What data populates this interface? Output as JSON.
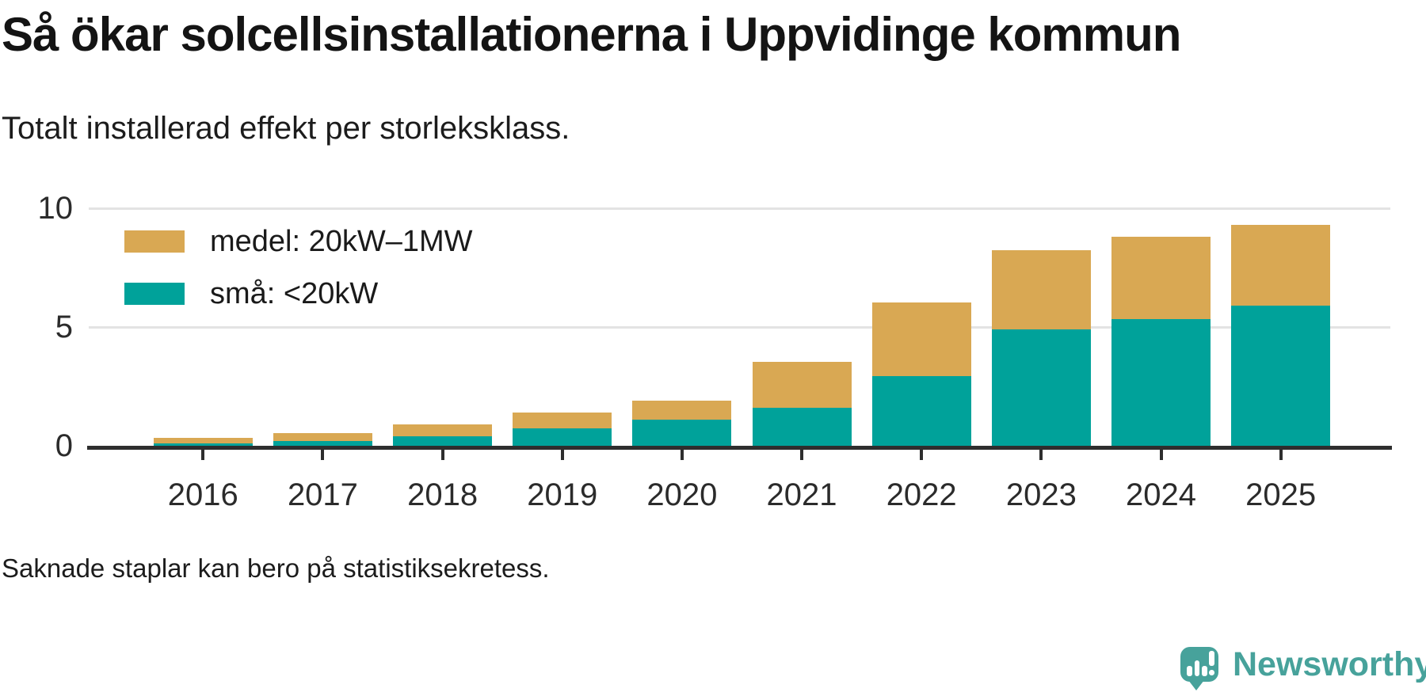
{
  "header": {
    "title": "Så ökar solcellsinstallationerna i Uppvidinge kommun",
    "subtitle": "Totalt installerad effekt per storleksklass."
  },
  "chart_data": {
    "type": "bar",
    "stacked": true,
    "categories": [
      "2016",
      "2017",
      "2018",
      "2019",
      "2020",
      "2021",
      "2022",
      "2023",
      "2024",
      "2025"
    ],
    "series": [
      {
        "name": "medel: 20kW–1MW",
        "color": "#d9a853",
        "stack": "top",
        "values": [
          0.25,
          0.35,
          0.5,
          0.65,
          0.8,
          1.95,
          3.1,
          3.35,
          3.45,
          3.4
        ]
      },
      {
        "name": "små: <20kW",
        "color": "#00a29a",
        "stack": "bottom",
        "values": [
          0.1,
          0.2,
          0.4,
          0.75,
          1.1,
          1.6,
          2.95,
          4.9,
          5.35,
          5.9
        ]
      }
    ],
    "totals": [
      0.35,
      0.55,
      0.9,
      1.4,
      1.9,
      3.55,
      6.05,
      8.25,
      8.8,
      9.3
    ],
    "ylim": [
      0,
      10
    ],
    "yticks": [
      0,
      5,
      10
    ],
    "grid": "horizontal",
    "legend_position": "top-left"
  },
  "footer": {
    "note": "Saknade staplar kan bero på statistiksekretess."
  },
  "branding": {
    "logo_text": "Newsworthy",
    "logo_color": "#47a29b",
    "logo_icon": "speech-bubble-bar-chart-icon"
  }
}
